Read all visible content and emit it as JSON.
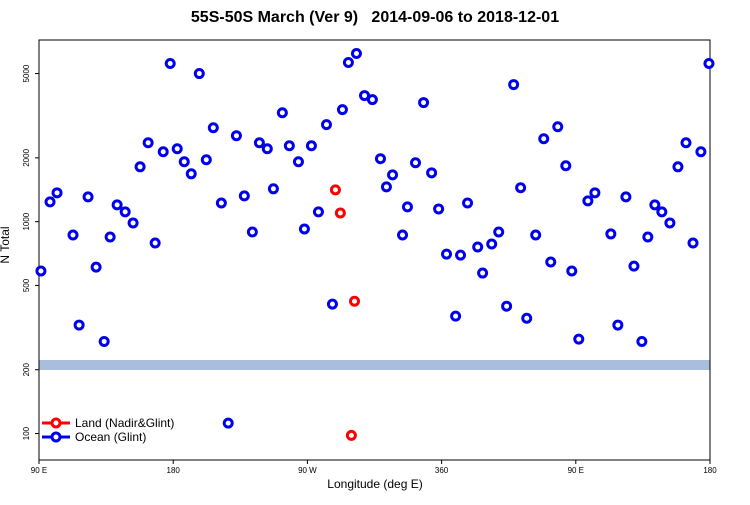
{
  "chart_data": {
    "type": "scatter",
    "title": "55S-50S March (Ver 9)   2014-09-06 to 2018-12-01",
    "x_label": "Longitude (deg E)",
    "y_label": "N Total",
    "log_y": true,
    "legend": "bottom-left",
    "xlim": [
      90,
      540
    ],
    "xticks": [
      {
        "value": 90,
        "label": "90 E"
      },
      180,
      {
        "value": 270,
        "label": "90 W"
      },
      360,
      {
        "value": 450,
        "label": "90 E"
      },
      {
        "value": 540,
        "label": "180"
      }
    ],
    "ylim": [
      75,
      7200
    ],
    "yticks": [
      100,
      200,
      500,
      1000,
      2000,
      5000
    ],
    "series": [
      {
        "name": "Land (Nadir&Glint)",
        "color": "#ff0000",
        "x": [
          288.8,
          292.1,
          301.6,
          299.5
        ],
        "values": [
          1413,
          1099,
          421,
          98
        ]
      },
      {
        "name": "Ocean (Glint)",
        "color": "#0000ee",
        "x": [
          91.3,
          97.4,
          102.1,
          112.8,
          116.9,
          122.9,
          128.3,
          133.7,
          137.7,
          142.4,
          147.8,
          153.1,
          157.8,
          163.2,
          167.9,
          173.3,
          178,
          182.7,
          187.4,
          192.1,
          197.5,
          202.2,
          206.9,
          212.3,
          222.4,
          227.7,
          233.1,
          237.8,
          243.1,
          247.2,
          253.2,
          257.9,
          264,
          268,
          272.7,
          277.4,
          282.8,
          286.8,
          293.5,
          297.5,
          302.9,
          308.3,
          313.6,
          319,
          323,
          327.1,
          333.8,
          337.1,
          342.5,
          347.9,
          353.3,
          358,
          363.3,
          369.4,
          372.7,
          377.4,
          384.2,
          387.5,
          393.6,
          398.3,
          403.6,
          408.3,
          413,
          417.1,
          423.1,
          428.5,
          433.2,
          437.9,
          443.3,
          447.3,
          452,
          458.1,
          462.8,
          473.5,
          478.2,
          483.6,
          489,
          494.3,
          498.3,
          503,
          507.7,
          513.1,
          518.5,
          523.9,
          528.6,
          533.9,
          539.3,
          216.9
        ],
        "values": [
          585,
          1240,
          1368,
          865,
          325,
          1309,
          610,
          272,
          846,
          1200,
          1112,
          986,
          1815,
          2357,
          793,
          2138,
          5575,
          2208,
          1917,
          1682,
          5000,
          1959,
          2775,
          1225,
          2545,
          1323,
          894,
          2357,
          2208,
          1429,
          3266,
          2281,
          1917,
          923,
          2281,
          1112,
          2870,
          408,
          3378,
          5636,
          6219,
          3936,
          3767,
          1982,
          1459,
          1663,
          865,
          1174,
          1896,
          3648,
          1700,
          1148,
          703,
          358,
          695,
          1225,
          759,
          572,
          784,
          894,
          399,
          4436,
          1445,
          350,
          865,
          2462,
          645,
          2806,
          1835,
          585,
          279,
          1253,
          1368,
          875,
          325,
          1309,
          617,
          272,
          846,
          1200,
          1112,
          986,
          1815,
          2357,
          793,
          2138,
          5575,
          112
        ]
      }
    ]
  }
}
